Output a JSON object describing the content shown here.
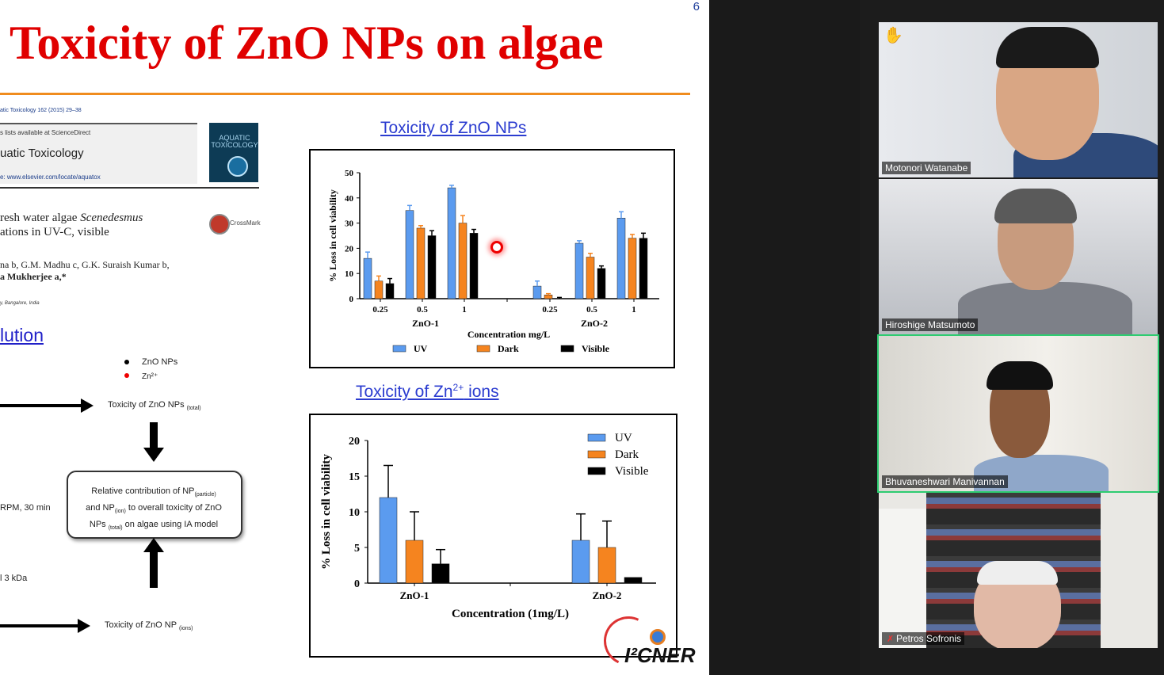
{
  "slide": {
    "number": "6",
    "title": "Toxicity of ZnO NPs on algae",
    "paper": {
      "journal_line": "atic Toxicology 162 (2015) 29–38",
      "contents_line": "s lists available at ScienceDirect",
      "journal_name": "uatic Toxicology",
      "journal_url": "e: www.elsevier.com/locate/aquatox",
      "cover_text": "AQUATIC TOXICOLOGY",
      "article_line1": "resh water algae ",
      "article_line1_italic": "Scenedesmus",
      "article_line2": "ations in UV-C, visible",
      "crossmark": "CrossMark",
      "authors_line1": "na b, G.M. Madhu c, G.K. Suraish Kumar b,",
      "authors_line2": "a Mukherjee a,*",
      "affiliation": "y, Bangalore, India"
    },
    "solution_heading": "lution",
    "legend": {
      "nps": "ZnO NPs",
      "ions": "Zn²⁺"
    },
    "flow": {
      "total_label": "Toxicity of ZnO NPs",
      "total_sub": "(total)",
      "rpm_label": "RPM, 30 min",
      "kda_label": "l 3 kDa",
      "ions_label": "Toxicity of ZnO NP",
      "ions_sub": "(ions)",
      "box_line1": "Relative contribution of NP",
      "box_line1_sub": "(particle)",
      "box_line2a": "and NP",
      "box_line2_sub": "(ion)",
      "box_line2b": " to overall toxicity of ZnO",
      "box_line3a": "NPs ",
      "box_line3_sub": "(total)",
      "box_line3b": " on algae using IA model"
    },
    "chart1_title": "Toxicity of ZnO NPs",
    "chart2_title_a": "Toxicity of Zn",
    "chart2_title_sup": "2+",
    "chart2_title_b": " ions",
    "logo": "I²CNER",
    "colors": {
      "uv": "#5b9bef",
      "dark": "#f5841f",
      "visible": "#000000",
      "title_red": "#e00000",
      "rule_orange": "#f08c1e"
    }
  },
  "participants": [
    {
      "name": "Motonori Watanabe",
      "hand_raised": true,
      "muted": false,
      "active": false
    },
    {
      "name": "Hiroshige Matsumoto",
      "hand_raised": false,
      "muted": false,
      "active": false
    },
    {
      "name": "Bhuvaneshwari Manivannan",
      "hand_raised": false,
      "muted": false,
      "active": true
    },
    {
      "name": "Petros Sofronis",
      "hand_raised": false,
      "muted": true,
      "active": false
    }
  ],
  "chart_data": [
    {
      "type": "bar",
      "title": "Toxicity of ZnO NPs",
      "ylabel": "% Loss in cell viability",
      "xlabel": "Concentration mg/L",
      "ylim": [
        0,
        50
      ],
      "yticks": [
        0,
        10,
        20,
        30,
        40,
        50
      ],
      "groups": [
        {
          "name": "ZnO-1",
          "categories": [
            "0.25",
            "0.5",
            "1"
          ]
        },
        {
          "name": "ZnO-2",
          "categories": [
            "0.25",
            "0.5",
            "1"
          ]
        }
      ],
      "series": [
        {
          "name": "UV",
          "values": [
            16,
            35,
            44,
            5,
            22,
            32
          ],
          "errors": [
            2.5,
            2,
            1,
            2,
            1,
            2.5
          ]
        },
        {
          "name": "Dark",
          "values": [
            7,
            28,
            30,
            1.5,
            16.5,
            24
          ],
          "errors": [
            2,
            1,
            3,
            0.5,
            1.5,
            1.5
          ]
        },
        {
          "name": "Visible",
          "values": [
            6,
            25,
            26,
            0,
            12,
            24
          ],
          "errors": [
            2,
            2,
            1.5,
            0.5,
            1,
            2
          ]
        }
      ],
      "legend_position": "bottom"
    },
    {
      "type": "bar",
      "title": "Toxicity of Zn2+ ions",
      "ylabel": "% Loss in cell viability",
      "xlabel": "Concentration (1mg/L)",
      "ylim": [
        0,
        20
      ],
      "yticks": [
        0,
        5,
        10,
        15,
        20
      ],
      "categories": [
        "ZnO-1",
        "ZnO-2"
      ],
      "series": [
        {
          "name": "UV",
          "values": [
            12,
            6
          ],
          "errors": [
            4.5,
            3.7
          ]
        },
        {
          "name": "Dark",
          "values": [
            6,
            5
          ],
          "errors": [
            4,
            3.7
          ]
        },
        {
          "name": "Visible",
          "values": [
            2.7,
            0.8
          ],
          "errors": [
            2,
            0
          ]
        }
      ],
      "legend_position": "top-right"
    }
  ]
}
